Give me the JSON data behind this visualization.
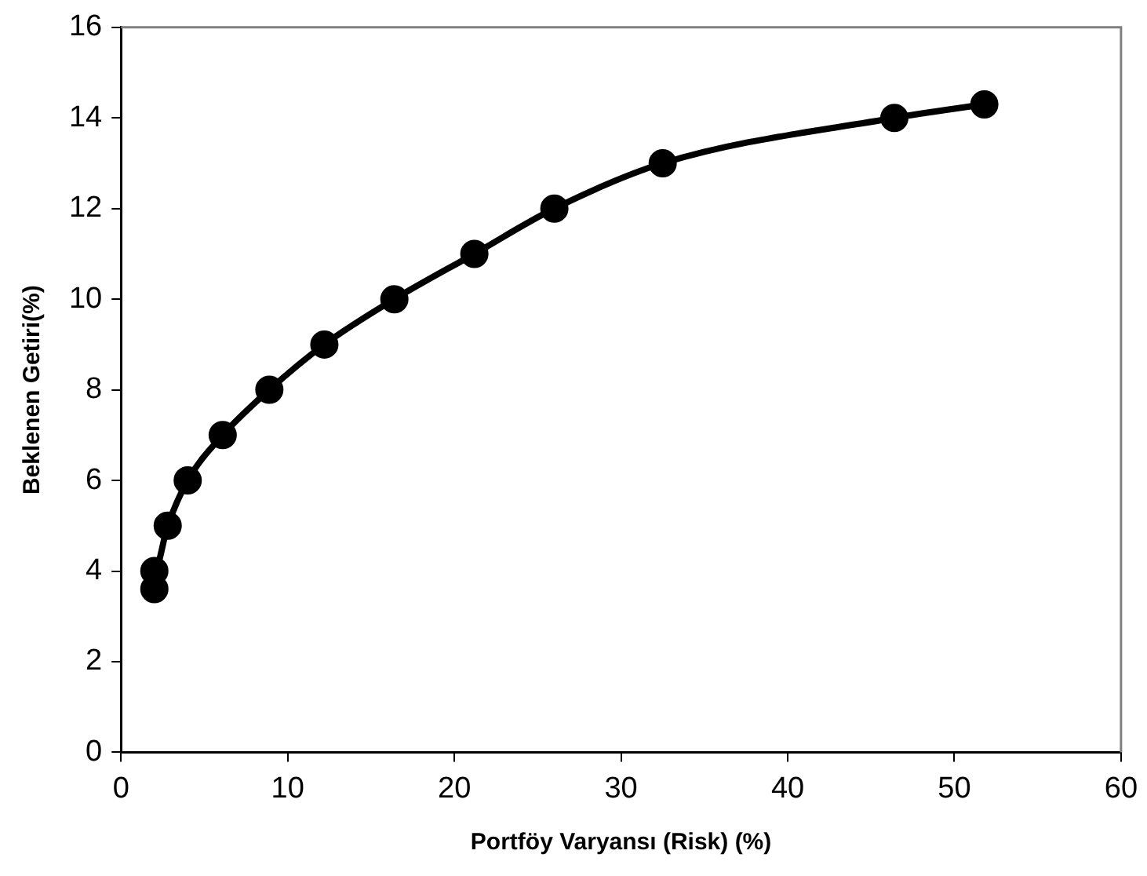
{
  "chart_data": {
    "type": "line",
    "xlabel": "Portföy Varyansı (Risk) (%)",
    "ylabel": "Beklenen Getiri(%)",
    "x": [
      2.0,
      2.0,
      2.8,
      4.0,
      6.1,
      8.9,
      12.2,
      16.4,
      21.2,
      26.0,
      32.5,
      46.4,
      51.8
    ],
    "series": [
      {
        "color": "#000000",
        "values": [
          3.6,
          4,
          5,
          6,
          7,
          8,
          9,
          10,
          11,
          12,
          13,
          14,
          14.3
        ]
      }
    ],
    "xlim": [
      0,
      60
    ],
    "xticks": [
      0,
      10,
      20,
      30,
      40,
      50,
      60
    ],
    "ylim": [
      0,
      16
    ],
    "yticks": [
      0,
      2,
      4,
      6,
      8,
      10,
      12,
      14,
      16
    ],
    "grid": false,
    "legend": false,
    "marker": "circle",
    "line_style": "solid"
  }
}
